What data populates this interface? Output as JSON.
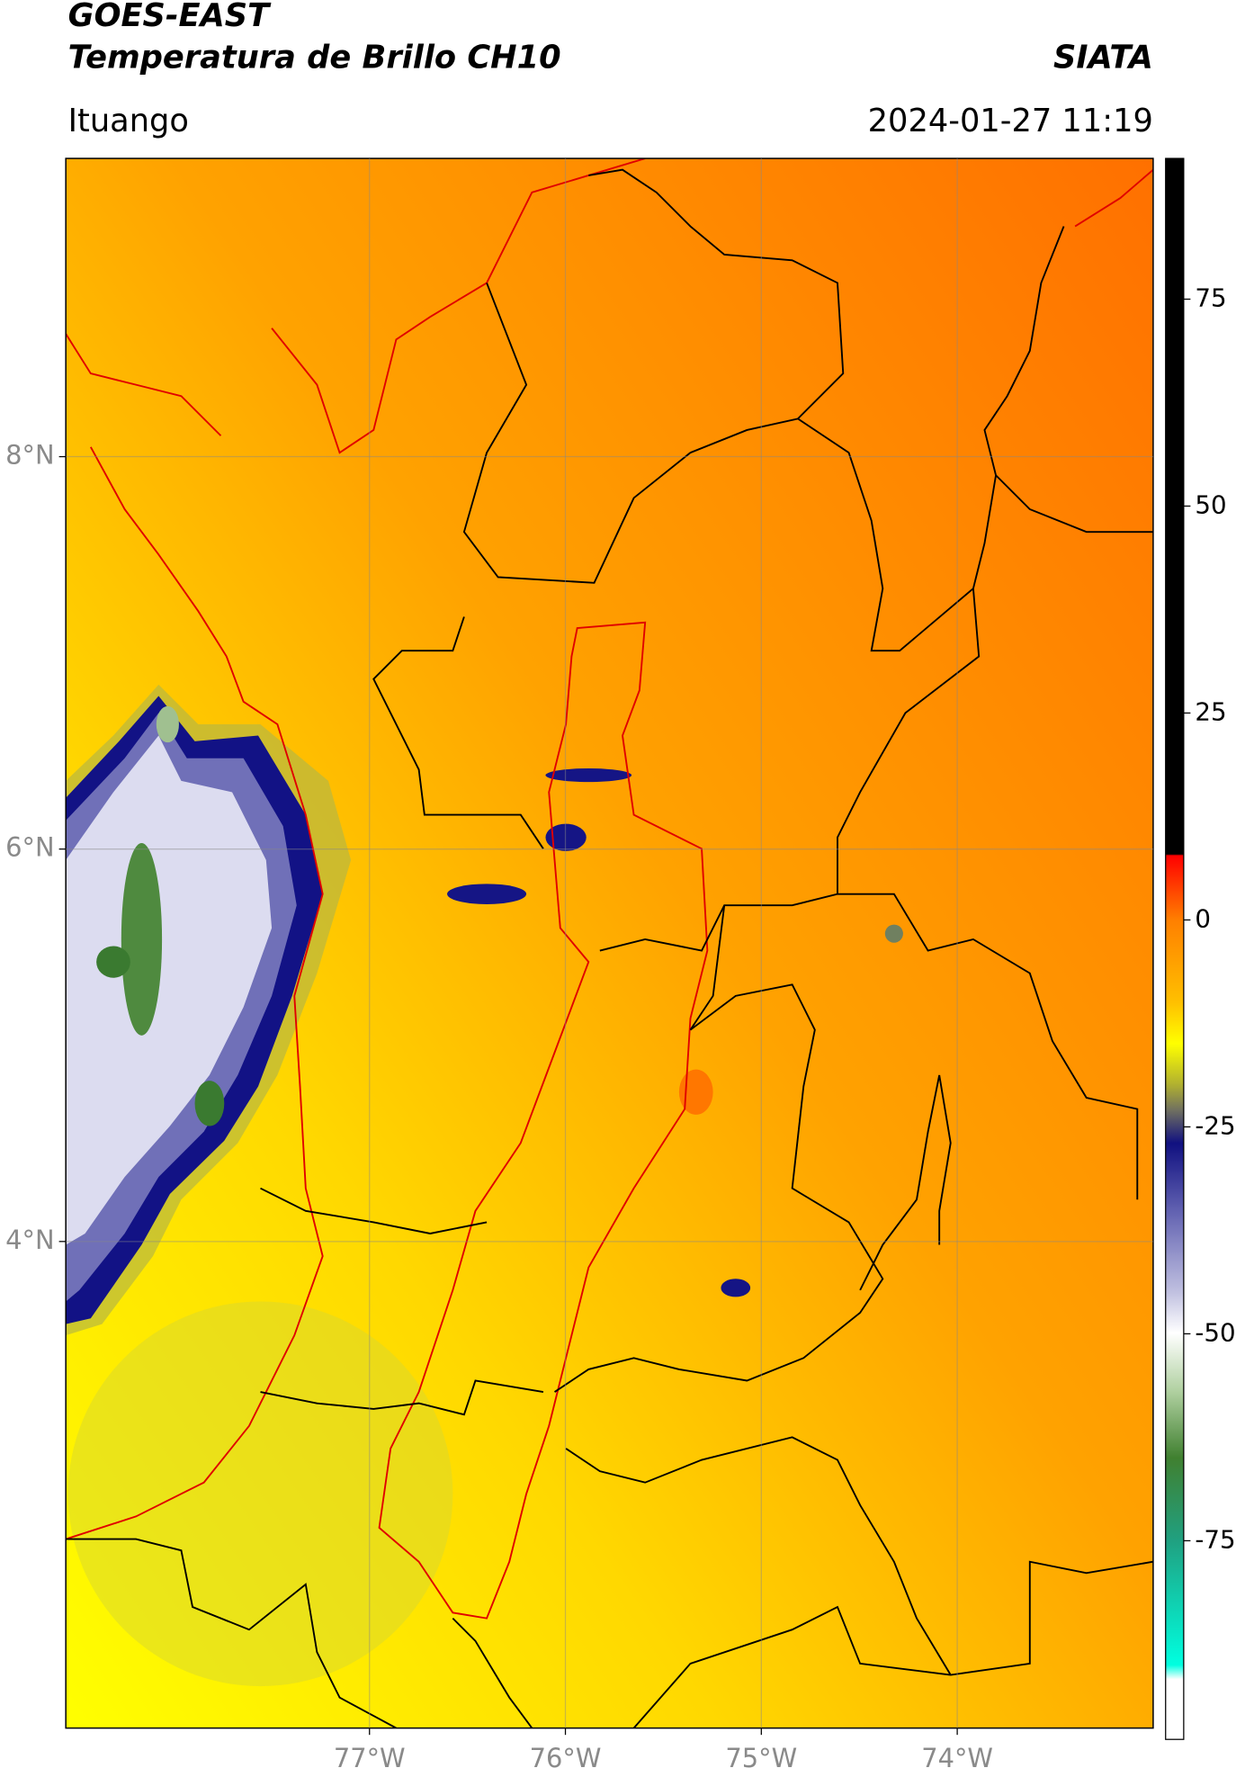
{
  "header": {
    "title": "GOES-EAST",
    "subtitle": "Temperatura de Brillo CH10",
    "source": "SIATA",
    "location": "Ituango",
    "timestamp": "2024-01-27 11:19"
  },
  "map": {
    "lonlim": [
      -78.55,
      -73.0
    ],
    "latlim": [
      1.52,
      9.52
    ],
    "xticks": [
      {
        "value": -77,
        "label": "77°W"
      },
      {
        "value": -76,
        "label": "76°W"
      },
      {
        "value": -75,
        "label": "75°W"
      },
      {
        "value": -74,
        "label": "74°W"
      }
    ],
    "yticks": [
      {
        "value": 8,
        "label": "8°N"
      },
      {
        "value": 6,
        "label": "6°N"
      },
      {
        "value": 4,
        "label": "4°N"
      }
    ],
    "grid": true
  },
  "colorbar": {
    "lim": [
      -99,
      92
    ],
    "ticks": [
      75,
      50,
      25,
      0,
      -25,
      -50,
      -75
    ]
  }
}
